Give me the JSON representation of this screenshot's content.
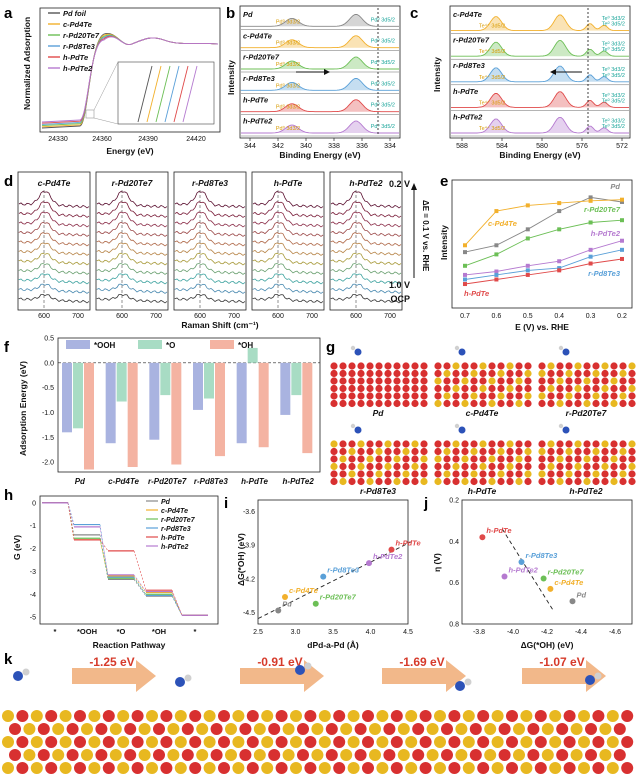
{
  "figure_title": "Multi-panel figure: Pd-Te catalysts characterization",
  "materials": [
    "c-Pd4Te",
    "r-Pd20Te7",
    "r-Pd8Te3",
    "h-PdTe",
    "h-PdTe2"
  ],
  "panels": {
    "a": {
      "label": "a",
      "ylabel": "Normalized Adsorption",
      "xlabel": "Energy (eV)",
      "ticks": [
        "24330",
        "24360",
        "24390",
        "24420"
      ],
      "legend": [
        "Pd foil",
        "c-Pd4Te",
        "r-Pd20Te7",
        "r-Pd8Te3",
        "h-PdTe",
        "h-PdTe2"
      ],
      "colors": [
        "#555555",
        "#f2b02c",
        "#6cbf56",
        "#5aa0d8",
        "#e04a4a",
        "#b57ad0"
      ]
    },
    "b": {
      "label": "b",
      "ylabel": "Intensity",
      "xlabel": "Binding Energy (eV)",
      "ticks": [
        "344",
        "342",
        "340",
        "338",
        "336",
        "334"
      ],
      "rows": [
        "Pd",
        "c-Pd4Te",
        "r-Pd20Te7",
        "r-Pd8Te3",
        "h-PdTe",
        "h-PdTe2"
      ],
      "peak_left": "Pd⁰ 3d3/2",
      "peak_right": "Pd⁰ 3d5/2"
    },
    "c": {
      "label": "c",
      "ylabel": "Intensity",
      "xlabel": "Binding Energy (eV)",
      "ticks": [
        "588",
        "584",
        "580",
        "576",
        "572"
      ],
      "rows": [
        "c-Pd4Te",
        "r-Pd20Te7",
        "r-Pd8Te3",
        "h-PdTe",
        "h-PdTe2"
      ],
      "peak_left": "Te⁴⁺ 3d5/2",
      "peak_right": "Te⁰ 3d5/2",
      "peak_mid": "Te⁰ 3d3/2"
    },
    "d": {
      "label": "d",
      "xlabel": "Raman Shift (cm⁻¹)",
      "subtitles": [
        "c-Pd4Te",
        "r-Pd20Te7",
        "r-Pd8Te3",
        "h-PdTe",
        "h-PdTe2"
      ],
      "ticks": [
        "600",
        "700"
      ],
      "v_top": "0.2 V",
      "v_bottom": "1.0 V",
      "ocp": "OCP",
      "step": "ΔE = 0.1 V vs. RHE"
    },
    "e": {
      "label": "e",
      "ylabel": "Intensity",
      "xlabel": "E (V) vs. RHE",
      "ticks": [
        "0.7",
        "0.6",
        "0.5",
        "0.4",
        "0.3",
        "0.2"
      ]
    },
    "f": {
      "label": "f",
      "ylabel": "Adsorption Energy (eV)",
      "legend": [
        "*OOH",
        "*O",
        "*OH"
      ],
      "yticks": [
        "0.5",
        "0.0",
        "-0.5",
        "-1.0",
        "-1.5",
        "-2.0"
      ],
      "categories": [
        "Pd",
        "c-Pd4Te",
        "r-Pd20Te7",
        "r-Pd8Te3",
        "h-PdTe",
        "h-PdTe2"
      ]
    },
    "g": {
      "label": "g",
      "names": [
        "Pd",
        "c-Pd4Te",
        "r-Pd20Te7",
        "r-Pd8Te3",
        "h-PdTe",
        "h-PdTe2"
      ]
    },
    "h": {
      "label": "h",
      "ylabel": "G (eV)",
      "xlabel": "Reaction Pathway",
      "yticks": [
        "0",
        "-1",
        "-2",
        "-3",
        "-4",
        "-5"
      ],
      "steps": [
        "*",
        "*OOH",
        "*O",
        "*OH",
        "*"
      ],
      "legend": [
        "Pd",
        "c-Pd4Te",
        "r-Pd20Te7",
        "r-Pd8Te3",
        "h-PdTe",
        "h-PdTe2"
      ]
    },
    "i": {
      "label": "i",
      "ylabel": "ΔG(*OH) (eV)",
      "xlabel": "dPd-a-Pd (Å)",
      "xticks": [
        "2.5",
        "3.0",
        "3.5",
        "4.0",
        "4.5"
      ],
      "yticks": [
        "-3.6",
        "-3.9",
        "-4.2",
        "-4.5"
      ],
      "point_labels": [
        "Pd",
        "c-Pd4Te",
        "r-Pd20Te7",
        "r-Pd8Te3",
        "h-PdTe",
        "h-PdTe2"
      ]
    },
    "j": {
      "label": "j",
      "ylabel": "η (V)",
      "xlabel": "ΔG(*OH) (eV)",
      "xticks": [
        "-3.8",
        "-4.0",
        "-4.2",
        "-4.4",
        "-4.6"
      ],
      "yticks": [
        "0.2",
        "0.4",
        "0.6",
        "0.8"
      ],
      "point_labels": [
        "h-PdTe",
        "r-Pd8Te3",
        "h-PdTe2",
        "r-Pd20Te7",
        "c-Pd4Te",
        "Pd"
      ]
    },
    "k": {
      "label": "k",
      "steps": [
        "-1.25 eV",
        "-0.91 eV",
        "-1.69 eV",
        "-1.07 eV"
      ]
    }
  },
  "chart_data": [
    {
      "type": "bar",
      "panel": "f",
      "title": "",
      "ylabel": "Adsorption Energy (eV)",
      "ylim": [
        -2.2,
        0.5
      ],
      "categories": [
        "Pd",
        "c-Pd4Te",
        "r-Pd20Te7",
        "r-Pd8Te3",
        "h-PdTe",
        "h-PdTe2"
      ],
      "series": [
        {
          "name": "*OOH",
          "color": "#a9b3e0",
          "values": [
            -1.4,
            -1.62,
            -1.55,
            -0.95,
            -1.62,
            -1.05
          ]
        },
        {
          "name": "*O",
          "color": "#a8dcc4",
          "values": [
            -1.32,
            -0.78,
            -0.65,
            -0.72,
            0.3,
            -0.65
          ]
        },
        {
          "name": "*OH",
          "color": "#f4b3a2",
          "values": [
            -2.15,
            -2.1,
            -2.05,
            -1.88,
            -1.7,
            -1.82
          ]
        }
      ]
    },
    {
      "type": "line",
      "panel": "e",
      "xlabel": "E (V) vs. RHE",
      "ylabel": "Intensity",
      "x": [
        0.7,
        0.6,
        0.5,
        0.4,
        0.3,
        0.2
      ],
      "series": [
        {
          "name": "Pd",
          "color": "#888888",
          "values": [
            0.42,
            0.48,
            0.62,
            0.78,
            0.9,
            0.86
          ]
        },
        {
          "name": "c-Pd4Te",
          "color": "#f2b02c",
          "values": [
            0.48,
            0.78,
            0.83,
            0.85,
            0.87,
            0.88
          ]
        },
        {
          "name": "r-Pd20Te7",
          "color": "#6cbf56",
          "values": [
            0.3,
            0.4,
            0.54,
            0.62,
            0.68,
            0.7
          ]
        },
        {
          "name": "h-PdTe2",
          "color": "#b57ad0",
          "values": [
            0.22,
            0.25,
            0.3,
            0.34,
            0.44,
            0.52
          ]
        },
        {
          "name": "r-Pd8Te3",
          "color": "#5aa0d8",
          "values": [
            0.18,
            0.22,
            0.26,
            0.28,
            0.38,
            0.44
          ]
        },
        {
          "name": "h-PdTe",
          "color": "#e04a4a",
          "values": [
            0.14,
            0.18,
            0.22,
            0.26,
            0.32,
            0.36
          ]
        }
      ]
    },
    {
      "type": "scatter",
      "panel": "i",
      "xlabel": "dPd-a-Pd (Å)",
      "ylabel": "ΔG(*OH) (eV)",
      "xlim": [
        2.5,
        4.5
      ],
      "ylim": [
        -4.6,
        -3.5
      ],
      "points": [
        {
          "name": "Pd",
          "x": 2.77,
          "y": -4.48,
          "color": "#888888"
        },
        {
          "name": "c-Pd4Te",
          "x": 2.86,
          "y": -4.36,
          "color": "#f2b02c"
        },
        {
          "name": "r-Pd20Te7",
          "x": 3.27,
          "y": -4.42,
          "color": "#6cbf56"
        },
        {
          "name": "r-Pd8Te3",
          "x": 3.37,
          "y": -4.18,
          "color": "#5aa0d8"
        },
        {
          "name": "h-PdTe2",
          "x": 3.98,
          "y": -4.06,
          "color": "#b57ad0"
        },
        {
          "name": "h-PdTe",
          "x": 4.28,
          "y": -3.94,
          "color": "#e04a4a"
        }
      ]
    },
    {
      "type": "scatter",
      "panel": "j",
      "xlabel": "ΔG(*OH) (eV)",
      "ylabel": "η (V)",
      "xlim": [
        -3.7,
        -4.7
      ],
      "ylim": [
        0.8,
        0.2
      ],
      "points": [
        {
          "name": "h-PdTe",
          "x": -3.82,
          "y": 0.38,
          "color": "#e04a4a"
        },
        {
          "name": "r-Pd8Te3",
          "x": -4.05,
          "y": 0.5,
          "color": "#5aa0d8"
        },
        {
          "name": "h-PdTe2",
          "x": -3.95,
          "y": 0.57,
          "color": "#b57ad0"
        },
        {
          "name": "r-Pd20Te7",
          "x": -4.18,
          "y": 0.58,
          "color": "#6cbf56"
        },
        {
          "name": "c-Pd4Te",
          "x": -4.22,
          "y": 0.63,
          "color": "#f2b02c"
        },
        {
          "name": "Pd",
          "x": -4.35,
          "y": 0.69,
          "color": "#888888"
        }
      ]
    }
  ]
}
